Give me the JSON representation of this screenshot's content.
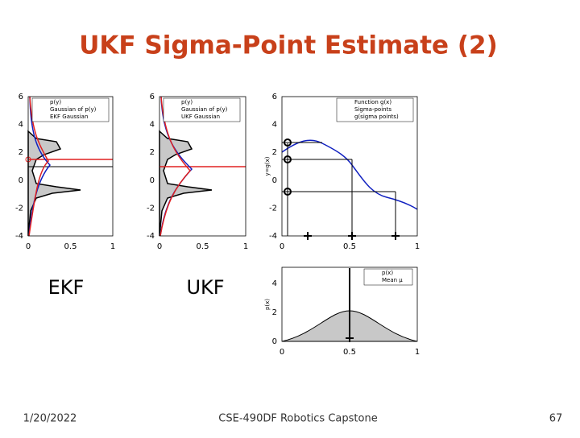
{
  "title": "UKF Sigma-Point Estimate (2)",
  "labels": [
    "EKF",
    "UKF"
  ],
  "figures": [
    {
      "yticks": [
        6,
        4,
        2,
        0,
        -2,
        -4
      ],
      "xticks": [
        0,
        0.5,
        1
      ],
      "legend": [
        "p(y)",
        "Gaussian of p(y)",
        "EKF Gaussian"
      ]
    },
    {
      "yticks": [
        6,
        4,
        2,
        0,
        -2,
        -4
      ],
      "xticks": [
        0,
        0.5,
        1
      ],
      "legend": [
        "p(y)",
        "Gaussian of p(y)",
        "UKF Gaussian"
      ]
    },
    {
      "yticks": [
        6,
        4,
        2,
        0,
        -2,
        -4
      ],
      "xticks": [
        0,
        0.5,
        1
      ],
      "ylabel": "y=g(x)",
      "legend": [
        "Function g(x)",
        "Sigma-points",
        "g(sigma points)"
      ]
    },
    {
      "yticks": [
        4,
        2,
        0
      ],
      "xticks": [
        0,
        0.5,
        1
      ],
      "ylabel": "p(x)",
      "legend": [
        "p(x)",
        "Mean μ"
      ]
    }
  ],
  "footer": {
    "date": "1/20/2022",
    "course": "CSE-490DF Robotics Capstone",
    "page": "67"
  }
}
